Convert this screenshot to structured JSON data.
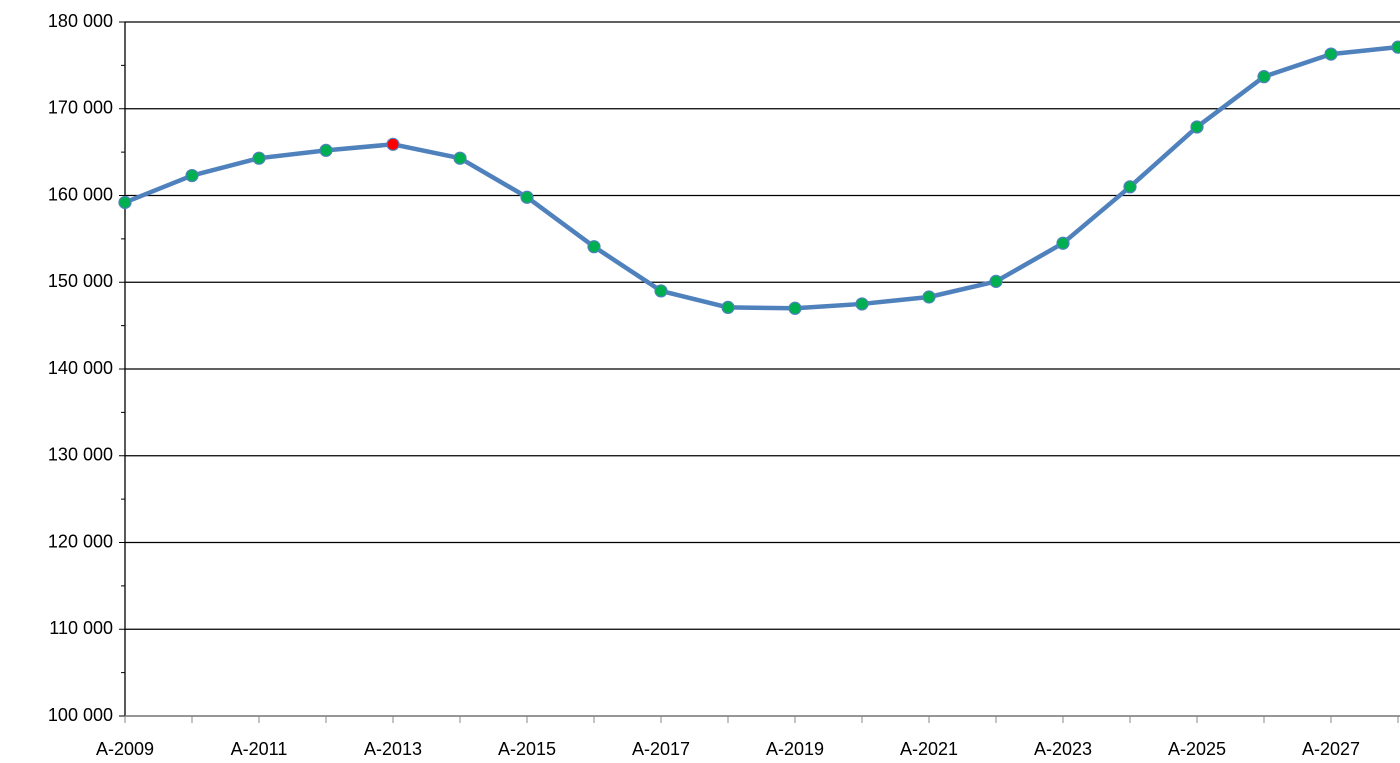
{
  "chart_data": {
    "type": "line",
    "categories": [
      "A-2009",
      null,
      "A-2011",
      null,
      "A-2013",
      null,
      "A-2015",
      null,
      "A-2017",
      null,
      "A-2019",
      null,
      "A-2021",
      null,
      "A-2023",
      null,
      "A-2025",
      null,
      "A-2027",
      null
    ],
    "values": [
      159200,
      162300,
      164300,
      165200,
      165900,
      164300,
      159800,
      154100,
      149000,
      147100,
      147000,
      147500,
      148300,
      150100,
      154500,
      161000,
      167900,
      173700,
      176300,
      177100
    ],
    "color": "#4f81bd",
    "marker_colors": [
      "#00b050",
      "#00b050",
      "#00b050",
      "#00b050",
      "#ff0000",
      "#00b050",
      "#00b050",
      "#00b050",
      "#00b050",
      "#00b050",
      "#00b050",
      "#00b050",
      "#00b050",
      "#00b050",
      "#00b050",
      "#00b050",
      "#00b050",
      "#00b050",
      "#00b050",
      "#00b050"
    ],
    "ylim": [
      100000,
      180000
    ],
    "yticks": [
      {
        "value": 100000,
        "label": "100 000"
      },
      {
        "value": 110000,
        "label": "110 000"
      },
      {
        "value": 120000,
        "label": "120 000"
      },
      {
        "value": 130000,
        "label": "130 000"
      },
      {
        "value": 140000,
        "label": "140 000"
      },
      {
        "value": 150000,
        "label": "150 000"
      },
      {
        "value": 160000,
        "label": "160 000"
      },
      {
        "value": 170000,
        "label": "170 000"
      },
      {
        "value": 180000,
        "label": "180 000"
      }
    ],
    "grid": true
  }
}
